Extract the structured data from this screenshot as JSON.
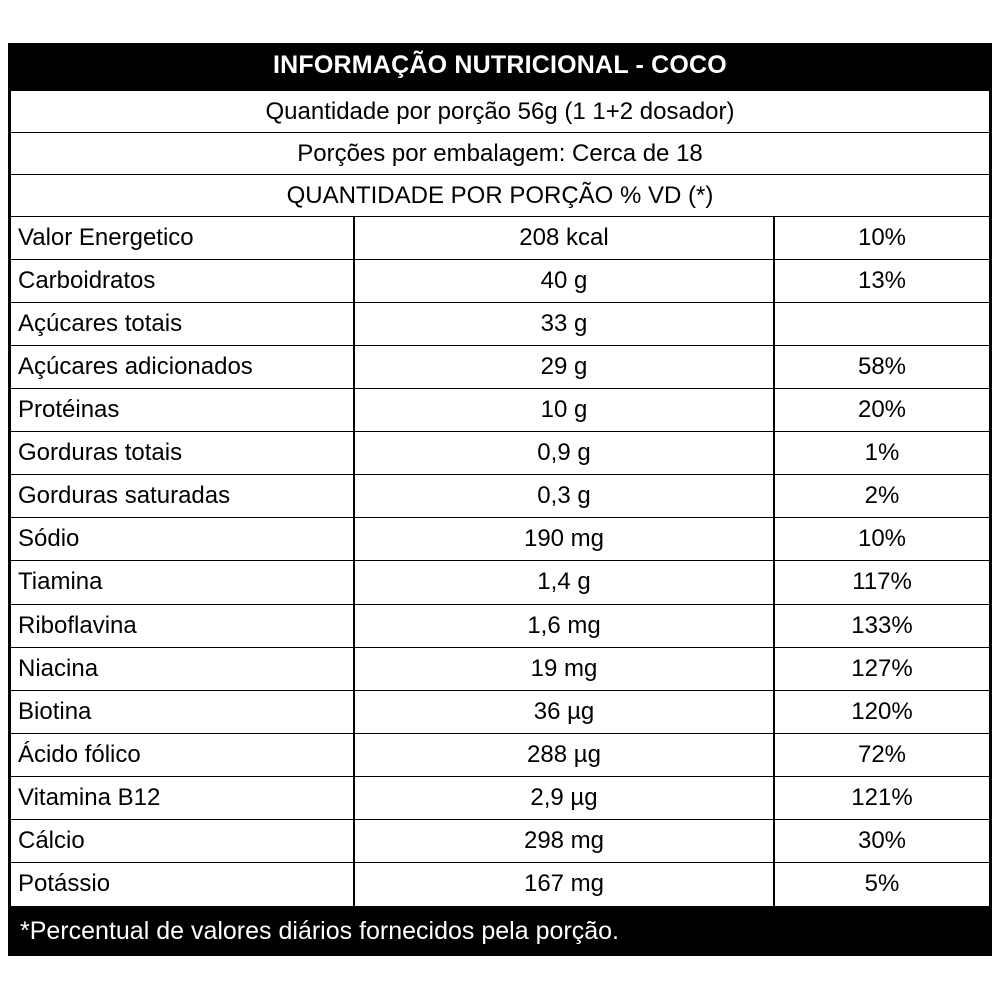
{
  "label": {
    "title": "INFORMAÇÃO NUTRICIONAL - COCO",
    "serving_size": "Quantidade por porção 56g (1 1+2 dosador)",
    "servings_per_package": "Porções por embalagem: Cerca de 18",
    "column_header": "QUANTIDADE POR PORÇÃO % VD (*)",
    "rows": [
      {
        "name": "Valor Energetico",
        "amount": "208 kcal",
        "vd": "10%"
      },
      {
        "name": "Carboidratos",
        "amount": "40 g",
        "vd": "13%"
      },
      {
        "name": "Açúcares totais",
        "amount": "33 g",
        "vd": ""
      },
      {
        "name": "Açúcares adicionados",
        "amount": "29 g",
        "vd": "58%"
      },
      {
        "name": "Protéinas",
        "amount": "10 g",
        "vd": "20%"
      },
      {
        "name": "Gorduras totais",
        "amount": "0,9 g",
        "vd": "1%"
      },
      {
        "name": "Gorduras saturadas",
        "amount": "0,3 g",
        "vd": "2%"
      },
      {
        "name": "Sódio",
        "amount": "190 mg",
        "vd": "10%"
      },
      {
        "name": "Tiamina",
        "amount": "1,4 g",
        "vd": "117%"
      },
      {
        "name": "Riboflavina",
        "amount": "1,6 mg",
        "vd": "133%"
      },
      {
        "name": "Niacina",
        "amount": "19 mg",
        "vd": "127%"
      },
      {
        "name": "Biotina",
        "amount": "36 µg",
        "vd": "120%"
      },
      {
        "name": "Ácido fólico",
        "amount": "288 µg",
        "vd": "72%"
      },
      {
        "name": "Vitamina B12",
        "amount": "2,9 µg",
        "vd": "121%"
      },
      {
        "name": "Cálcio",
        "amount": "298 mg",
        "vd": "30%"
      },
      {
        "name": "Potássio",
        "amount": "167 mg",
        "vd": "5%"
      }
    ],
    "footnote": "*Percentual de valores diários fornecidos pela porção."
  }
}
